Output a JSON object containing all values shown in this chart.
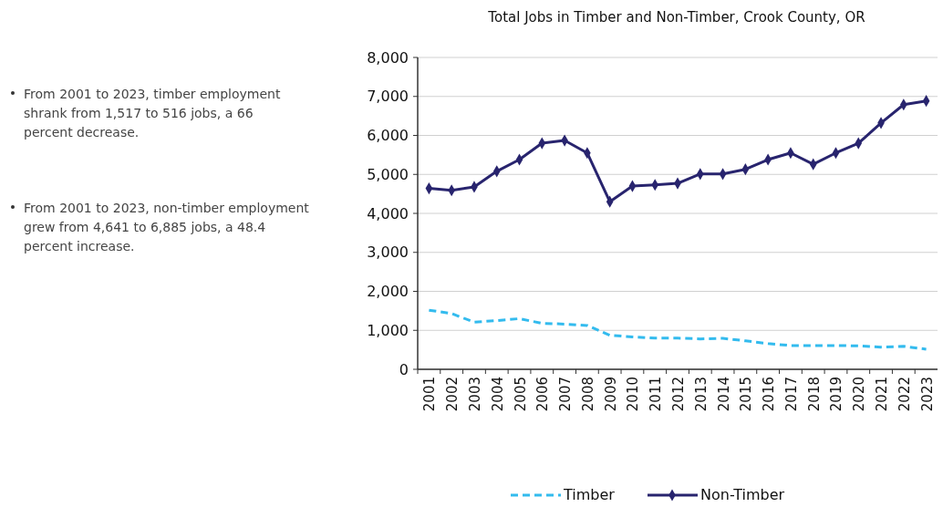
{
  "chart_data": {
    "type": "line",
    "title": "Total Jobs in Timber and Non-Timber, Crook County, OR",
    "categories": [
      "2001",
      "2002",
      "2003",
      "2004",
      "2005",
      "2006",
      "2007",
      "2008",
      "2009",
      "2010",
      "2011",
      "2012",
      "2013",
      "2014",
      "2015",
      "2016",
      "2017",
      "2018",
      "2019",
      "2020",
      "2021",
      "2022",
      "2023"
    ],
    "series": [
      {
        "name": "Timber",
        "color": "#33bbee",
        "line_style": "dashed",
        "marker": "none",
        "values": [
          1517,
          1430,
          1210,
          1250,
          1300,
          1180,
          1160,
          1125,
          875,
          830,
          800,
          800,
          780,
          795,
          730,
          660,
          610,
          610,
          610,
          600,
          570,
          590,
          516
        ]
      },
      {
        "name": "Non-Timber",
        "color": "#28246e",
        "line_style": "solid",
        "marker": "diamond",
        "values": [
          4641,
          4590,
          4680,
          5080,
          5380,
          5800,
          5870,
          5550,
          4300,
          4700,
          4730,
          4770,
          5010,
          5010,
          5130,
          5380,
          5550,
          5260,
          5550,
          5800,
          6320,
          6790,
          6885
        ]
      }
    ],
    "ylim": [
      0,
      8000
    ],
    "yticks": [
      {
        "value": 0,
        "label": "0"
      },
      {
        "value": 1000,
        "label": "1,000"
      },
      {
        "value": 2000,
        "label": "2,000"
      },
      {
        "value": 3000,
        "label": "3,000"
      },
      {
        "value": 4000,
        "label": "4,000"
      },
      {
        "value": 5000,
        "label": "5,000"
      },
      {
        "value": 6000,
        "label": "6,000"
      },
      {
        "value": 7000,
        "label": "7,000"
      },
      {
        "value": 8000,
        "label": "8,000"
      }
    ],
    "grid": "y",
    "legend": "bottom",
    "annotations": [
      "From 2001 to 2023, timber employment shrank from 1,517 to 516 jobs, a 66 percent decrease.",
      "From 2001 to 2023, non-timber employment grew from 4,641 to 6,885 jobs, a 48.4 percent increase."
    ]
  }
}
